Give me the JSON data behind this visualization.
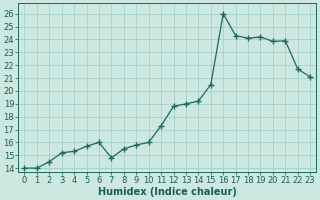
{
  "x": [
    0,
    1,
    2,
    3,
    4,
    5,
    6,
    7,
    8,
    9,
    10,
    11,
    12,
    13,
    14,
    15,
    16,
    17,
    18,
    19,
    20,
    21,
    22,
    23
  ],
  "y": [
    14.0,
    14.0,
    14.5,
    15.2,
    15.3,
    15.7,
    16.0,
    14.8,
    15.5,
    15.8,
    16.0,
    17.3,
    18.8,
    19.0,
    19.2,
    20.5,
    26.0,
    24.3,
    24.1,
    24.2,
    23.85,
    23.9,
    21.7,
    21.1
  ],
  "xlabel": "Humidex (Indice chaleur)",
  "ylim_min": 13.7,
  "ylim_max": 26.8,
  "xlim_min": -0.5,
  "xlim_max": 23.5,
  "yticks": [
    14,
    15,
    16,
    17,
    18,
    19,
    20,
    21,
    22,
    23,
    24,
    25,
    26
  ],
  "xticks": [
    0,
    1,
    2,
    3,
    4,
    5,
    6,
    7,
    8,
    9,
    10,
    11,
    12,
    13,
    14,
    15,
    16,
    17,
    18,
    19,
    20,
    21,
    22,
    23
  ],
  "line_color": "#1a6b5e",
  "marker": "+",
  "bg_color": "#cce8e0",
  "grid_color": "#9ecdc4",
  "text_color": "#1a5f54",
  "tick_font_size": 6,
  "xlabel_font_size": 7
}
